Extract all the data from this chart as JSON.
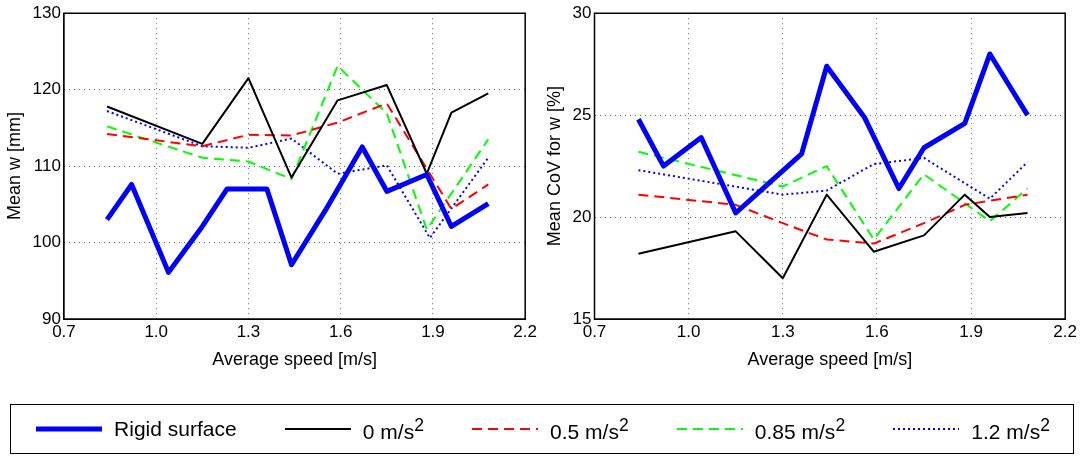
{
  "chart_data": [
    {
      "type": "line",
      "xlabel": "Average speed [m/s]",
      "ylabel": "Mean w [mm]",
      "xlim": [
        0.7,
        2.2
      ],
      "xticks": [
        0.7,
        {
          "value": 1,
          "label": "1.0"
        },
        1.3,
        1.6,
        1.9,
        2.2
      ],
      "ylim": [
        90,
        130
      ],
      "yticks": [
        90,
        100,
        110,
        120,
        130
      ],
      "grid": true,
      "legend": "bottom",
      "marker": "none",
      "series": [
        {
          "name": "Rigid surface",
          "color": "#0000ff",
          "line_style": "solid",
          "x": [
            0.84,
            0.92,
            1.04,
            1.15,
            1.23,
            1.36,
            1.44,
            1.55,
            1.67,
            1.75,
            1.88,
            1.96,
            2.08
          ],
          "values": [
            103.0,
            107.6,
            96.1,
            102.1,
            107.0,
            107.0,
            97.1,
            104.2,
            112.5,
            106.7,
            108.9,
            102.1,
            105.1
          ]
        },
        {
          "name": "0 m/s$^{2}$",
          "color": "#000000",
          "line_style": "solid",
          "x": [
            0.84,
            1.15,
            1.3,
            1.44,
            1.59,
            1.75,
            1.88,
            1.96,
            2.08
          ],
          "values": [
            117.8,
            112.9,
            121.5,
            108.5,
            118.6,
            120.6,
            109.0,
            117.0,
            119.5
          ]
        },
        {
          "name": "0.5 m/s$^{2}$",
          "color": "#ff0000",
          "line_style": "dashed",
          "x": [
            0.84,
            1.15,
            1.3,
            1.44,
            1.59,
            1.75,
            1.96,
            2.08
          ],
          "values": [
            114.2,
            112.6,
            114.1,
            114.0,
            115.7,
            118.2,
            104.4,
            107.6
          ]
        },
        {
          "name": "0.85 m/s$^{2}$",
          "color": "#00ff00",
          "line_style": "dashed",
          "x": [
            0.84,
            1.15,
            1.3,
            1.44,
            1.59,
            1.75,
            1.88,
            2.08
          ],
          "values": [
            115.2,
            111.1,
            110.6,
            108.3,
            123.1,
            116.9,
            101.7,
            113.5
          ]
        },
        {
          "name": "1.2 m/s$^{2}$",
          "color": "#0000ff",
          "line_style": "dotted",
          "x": [
            0.84,
            1.15,
            1.3,
            1.44,
            1.59,
            1.75,
            1.89,
            2.08
          ],
          "values": [
            117.2,
            112.6,
            112.4,
            113.6,
            109.0,
            110.1,
            100.6,
            111.1
          ]
        }
      ]
    },
    {
      "type": "line",
      "xlabel": "Average speed [m/s]",
      "ylabel": "Mean CoV for w [%]",
      "xlim": [
        0.7,
        2.2
      ],
      "xticks": [
        0.7,
        {
          "value": 1,
          "label": "1.0"
        },
        1.3,
        1.6,
        1.9,
        2.2
      ],
      "ylim": [
        15,
        30
      ],
      "yticks": [
        15,
        20,
        25,
        30
      ],
      "grid": true,
      "marker": "none",
      "series": [
        {
          "color": "#0000ff",
          "line_style": "solid",
          "x": [
            0.84,
            0.92,
            1.04,
            1.15,
            1.36,
            1.44,
            1.56,
            1.67,
            1.75,
            1.88,
            1.96,
            2.08
          ],
          "values": [
            24.8,
            22.5,
            23.9,
            20.2,
            23.1,
            27.4,
            24.9,
            21.4,
            23.4,
            24.6,
            28.0,
            25.0
          ]
        },
        {
          "color": "#000000",
          "line_style": "solid",
          "x": [
            0.84,
            1.15,
            1.3,
            1.44,
            1.59,
            1.75,
            1.88,
            1.96,
            2.08
          ],
          "values": [
            18.2,
            19.3,
            17.0,
            21.1,
            18.3,
            19.1,
            21.1,
            20.0,
            20.2
          ]
        },
        {
          "color": "#ff0000",
          "line_style": "dashed",
          "x": [
            0.84,
            1.15,
            1.3,
            1.44,
            1.59,
            1.75,
            1.88,
            2.08
          ],
          "values": [
            21.1,
            20.6,
            19.7,
            18.9,
            18.7,
            19.7,
            20.6,
            21.1
          ]
        },
        {
          "color": "#00ff00",
          "line_style": "dashed",
          "x": [
            0.84,
            1.3,
            1.44,
            1.59,
            1.75,
            1.96,
            2.08
          ],
          "values": [
            23.2,
            21.5,
            22.5,
            18.9,
            22.1,
            19.8,
            21.4
          ]
        },
        {
          "color": "#0000ff",
          "line_style": "dotted",
          "x": [
            0.84,
            1.3,
            1.44,
            1.59,
            1.75,
            1.96,
            2.08
          ],
          "values": [
            22.3,
            21.1,
            21.3,
            22.6,
            22.9,
            20.9,
            22.7
          ]
        }
      ]
    }
  ]
}
